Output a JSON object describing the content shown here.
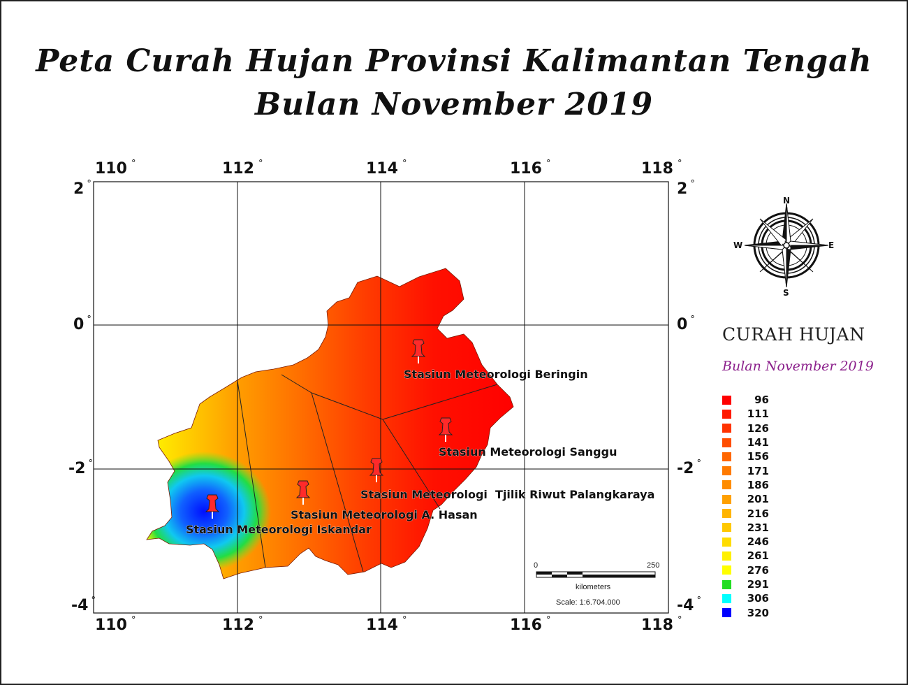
{
  "title": {
    "line1": "Peta Curah Hujan Provinsi Kalimantan Tengah",
    "line2": "Bulan November 2019"
  },
  "axes": {
    "lon_ticks": [
      "110",
      "112",
      "114",
      "116",
      "118"
    ],
    "lat_ticks": [
      "2",
      "0",
      "-2",
      "-4"
    ],
    "degree_symbol": "°"
  },
  "stations": [
    {
      "name": "Stasiun Meteorologi Beringin"
    },
    {
      "name": "Stasiun Meteorologi Sanggu"
    },
    {
      "name": "Stasiun Meteorologi  Tjilik Riwut Palangkaraya"
    },
    {
      "name": "Stasiun Meteorologi A. Hasan"
    },
    {
      "name": "Stasiun Meteorologi Iskandar"
    }
  ],
  "compass": {
    "n": "N",
    "e": "E",
    "s": "S",
    "w": "W"
  },
  "scale_bar": {
    "start": "0",
    "end": "250",
    "unit": "kilometers",
    "scale": "Scale: 1:6.704.000"
  },
  "legend": {
    "title": "CURAH HUJAN",
    "subtitle": "Bulan November 2019",
    "items": [
      {
        "value": "96",
        "color": "#ff0000"
      },
      {
        "value": "111",
        "color": "#ff1a00"
      },
      {
        "value": "126",
        "color": "#ff3300"
      },
      {
        "value": "141",
        "color": "#ff4d00"
      },
      {
        "value": "156",
        "color": "#ff6600"
      },
      {
        "value": "171",
        "color": "#ff7a00"
      },
      {
        "value": "186",
        "color": "#ff8c00"
      },
      {
        "value": "201",
        "color": "#ffa000"
      },
      {
        "value": "216",
        "color": "#ffb400"
      },
      {
        "value": "231",
        "color": "#ffc800"
      },
      {
        "value": "246",
        "color": "#ffdc00"
      },
      {
        "value": "261",
        "color": "#fff000"
      },
      {
        "value": "276",
        "color": "#ffff00"
      },
      {
        "value": "291",
        "color": "#22dd22"
      },
      {
        "value": "306",
        "color": "#00ffff"
      },
      {
        "value": "320",
        "color": "#0000ff"
      }
    ]
  }
}
